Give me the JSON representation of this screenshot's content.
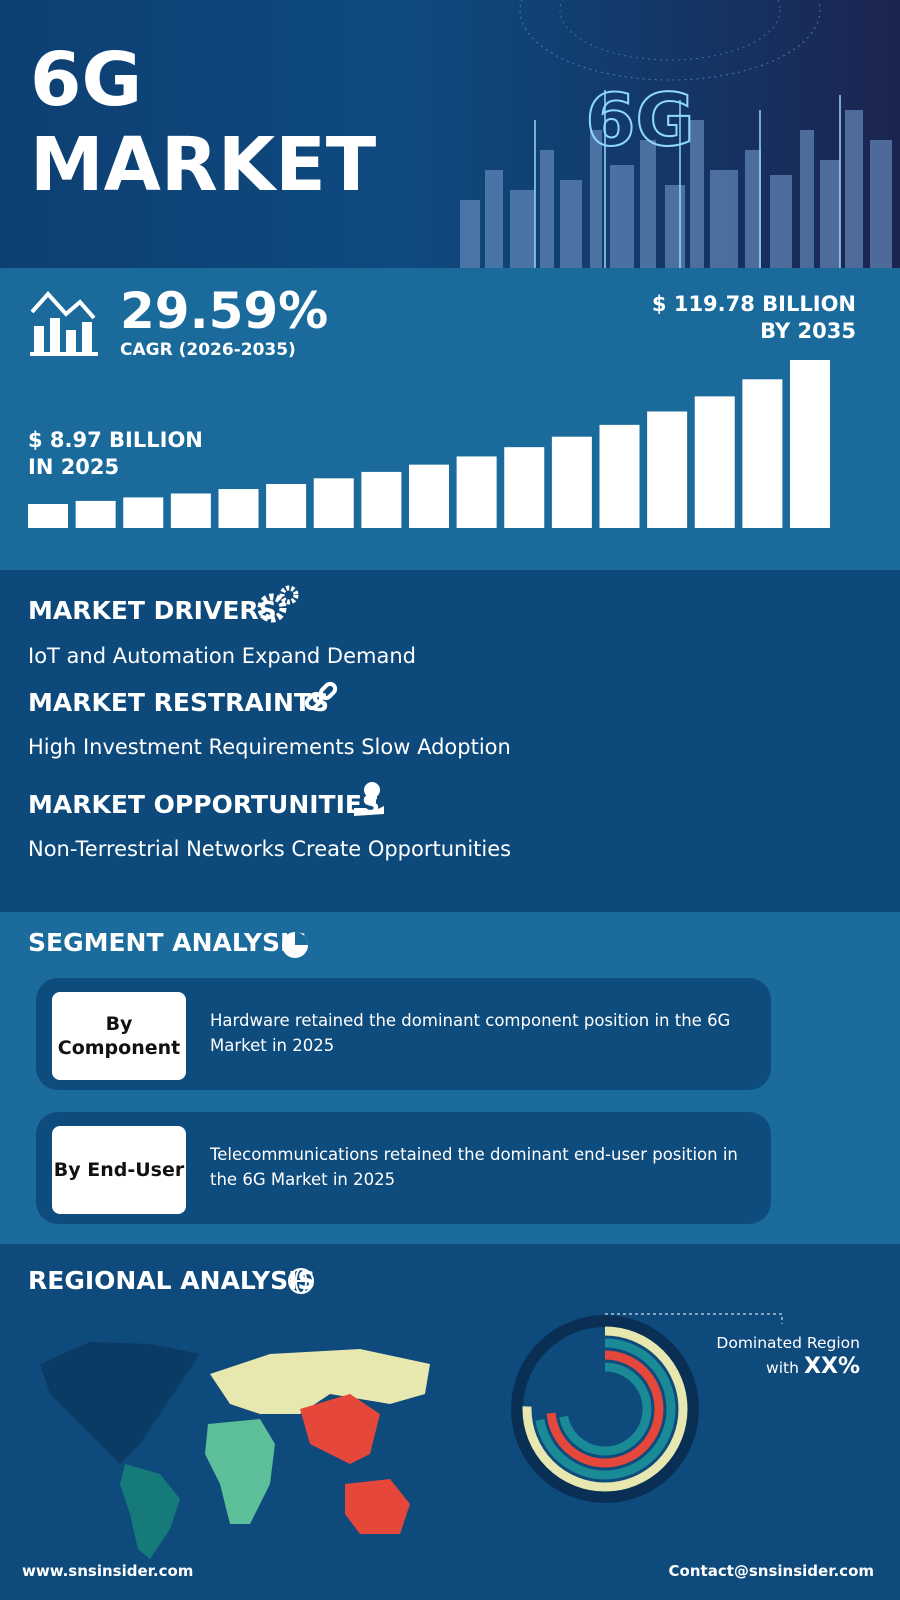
{
  "header": {
    "title_line1": "6G",
    "title_line2": "MARKET"
  },
  "growth": {
    "cagr": "29.59%",
    "cagr_label": "CAGR (2026-2035)",
    "end_value": "$ 119.78 BILLION",
    "end_year": "BY 2035",
    "start_value": "$ 8.97 BILLION",
    "start_year": "IN 2025"
  },
  "dynamics": [
    {
      "heading": "MARKET DRIVERS",
      "text": "IoT and Automation Expand Demand"
    },
    {
      "heading": "MARKET RESTRAINTS",
      "text": "High Investment Requirements Slow Adoption"
    },
    {
      "heading": "MARKET OPPORTUNITIES",
      "text": "Non-Terrestrial Networks Create Opportunities"
    }
  ],
  "segment": {
    "heading": "SEGMENT ANALYSIS",
    "items": [
      {
        "label": "By Component",
        "text": "Hardware retained the dominant component position in the 6G Market in 2025"
      },
      {
        "label": "By End-User",
        "text": "Telecommunications retained the dominant end-user position in the 6G Market in 2025"
      }
    ]
  },
  "regional": {
    "heading": "REGIONAL ANALYSIS",
    "note": "Dominated Region",
    "note_with": "with",
    "share": "XX%"
  },
  "footer": {
    "website": "www.snsinsider.com",
    "contact": "Contact@snsinsider.com"
  }
}
